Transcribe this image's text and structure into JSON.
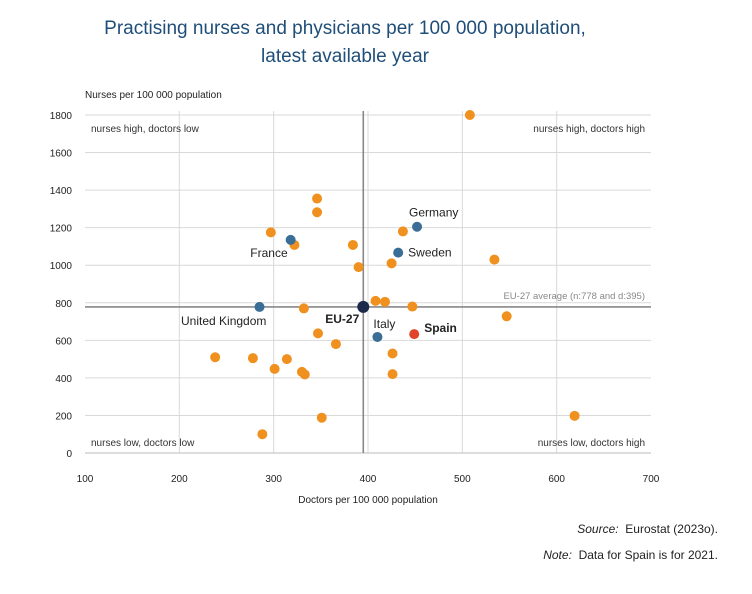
{
  "title_line1": "Practising nurses and physicians per 100 000 population,",
  "title_line2": "latest available year",
  "source_label": "Source:",
  "source_text": "Eurostat (2023o).",
  "note_label": "Note:",
  "note_text": "Data for Spain is for 2021.",
  "colors": {
    "other": "#F0901E",
    "highlight": "#3A6E96",
    "spain": "#E0452B",
    "eu": "#1B2A4A",
    "grid": "#d9d9d9",
    "avg_line": "#888888"
  },
  "chart_data": {
    "type": "scatter",
    "xlabel": "Doctors per 100 000 population",
    "ylabel": "Nurses per 100 000 population",
    "xlim": [
      100,
      700
    ],
    "ylim": [
      0,
      1800
    ],
    "xticks": [
      100,
      200,
      300,
      400,
      500,
      600,
      700
    ],
    "yticks": [
      0,
      200,
      400,
      600,
      800,
      1000,
      1200,
      1400,
      1600,
      1800
    ],
    "grid": true,
    "average_label": "EU-27 average (n:778 and d:395)",
    "average": {
      "x": 395,
      "y": 778
    },
    "quadrant_labels": {
      "top_left": "nurses high, doctors low",
      "top_right": "nurses high, doctors high",
      "bottom_left": "nurses low, doctors low",
      "bottom_right": "nurses low, doctors high"
    },
    "labeled_points": [
      {
        "label": "Germany",
        "x": 452,
        "y": 1205,
        "kind": "highlight",
        "bold": false
      },
      {
        "label": "Sweden",
        "x": 432,
        "y": 1067,
        "kind": "highlight",
        "bold": false
      },
      {
        "label": "France",
        "x": 318,
        "y": 1135,
        "kind": "highlight",
        "bold": false
      },
      {
        "label": "United Kingdom",
        "x": 285,
        "y": 778,
        "kind": "highlight",
        "bold": false
      },
      {
        "label": "Italy",
        "x": 410,
        "y": 618,
        "kind": "highlight",
        "bold": false
      },
      {
        "label": "EU-27",
        "x": 395,
        "y": 778,
        "kind": "eu",
        "bold": true
      },
      {
        "label": "Spain",
        "x": 449,
        "y": 633,
        "kind": "spain",
        "bold": true
      }
    ],
    "other_points": [
      [
        508,
        1800
      ],
      [
        346,
        1355
      ],
      [
        346,
        1282
      ],
      [
        297,
        1175
      ],
      [
        322,
        1108
      ],
      [
        384,
        1108
      ],
      [
        437,
        1180
      ],
      [
        390,
        990
      ],
      [
        425,
        1010
      ],
      [
        534,
        1030
      ],
      [
        408,
        810
      ],
      [
        418,
        805
      ],
      [
        447,
        780
      ],
      [
        332,
        770
      ],
      [
        547,
        728
      ],
      [
        347,
        637
      ],
      [
        366,
        580
      ],
      [
        238,
        510
      ],
      [
        278,
        505
      ],
      [
        314,
        500
      ],
      [
        426,
        530
      ],
      [
        301,
        448
      ],
      [
        330,
        432
      ],
      [
        333,
        418
      ],
      [
        426,
        420
      ],
      [
        619,
        198
      ],
      [
        351,
        188
      ],
      [
        288,
        100
      ]
    ]
  }
}
